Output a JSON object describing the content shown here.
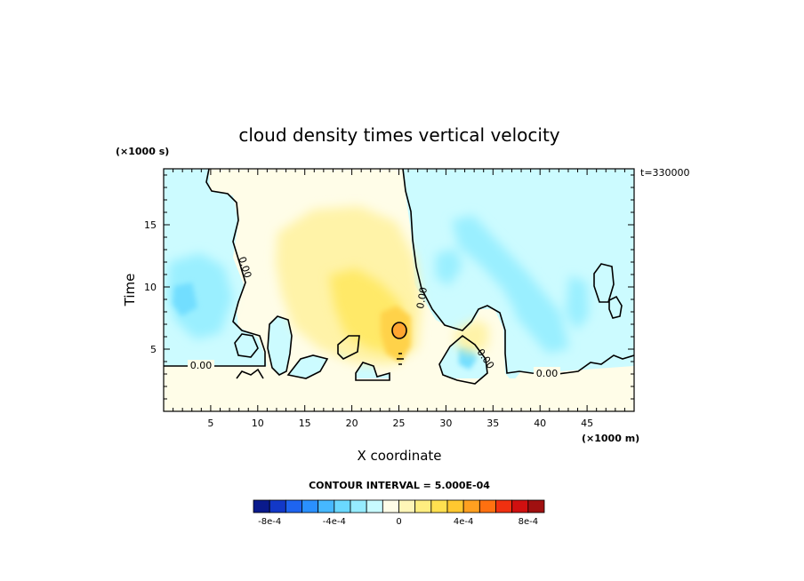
{
  "chart_data": {
    "type": "heatmap",
    "title": "cloud density times vertical velocity",
    "xlabel": "X coordinate",
    "ylabel": "Time",
    "x_unit_label": "(×1000 m)",
    "y_unit_label": "(×1000 s)",
    "time_stamp": "t=330000",
    "xlim": [
      0,
      50
    ],
    "ylim": [
      0,
      19.5
    ],
    "x_ticks": [
      "5",
      "10",
      "15",
      "20",
      "25",
      "30",
      "35",
      "40",
      "45"
    ],
    "y_ticks": [
      "5",
      "10",
      "15"
    ],
    "contour_interval_text": "CONTOUR INTERVAL = 5.000E-04",
    "contour_labels": [
      "0.00",
      "0.00",
      "0.00",
      "0.00",
      "0.00"
    ],
    "colorbar": {
      "labels": [
        "-8e-4",
        "-4e-4",
        "0",
        "4e-4",
        "8e-4"
      ],
      "colors": [
        "#0a1a8c",
        "#1238c8",
        "#1e64f0",
        "#2a90ff",
        "#46b8ff",
        "#6ad8ff",
        "#96ecff",
        "#c8faff",
        "#fffde8",
        "#fff6b8",
        "#ffee80",
        "#ffe050",
        "#ffc830",
        "#ffa020",
        "#ff7010",
        "#f03010",
        "#d01010",
        "#a01010"
      ]
    },
    "features": [
      {
        "name": "negative region west",
        "x": [
          1,
          8
        ],
        "y": [
          9,
          12
        ],
        "sign": "negative"
      },
      {
        "name": "positive core",
        "x": [
          23,
          27
        ],
        "y": [
          5,
          9
        ],
        "peak_x": 25,
        "peak_y": 6.7,
        "sign": "positive"
      },
      {
        "name": "negative band east",
        "x": [
          30,
          42
        ],
        "y": [
          5,
          16
        ],
        "sign": "negative"
      }
    ]
  }
}
